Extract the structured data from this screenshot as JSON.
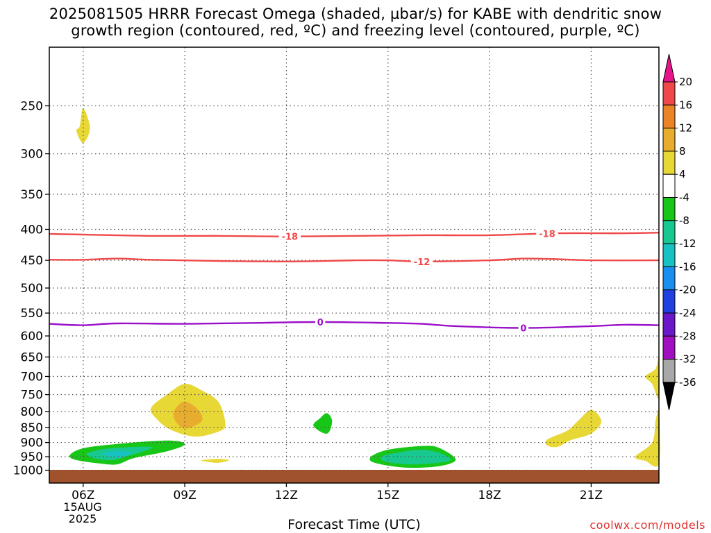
{
  "title": {
    "line1": "2025081505 HRRR Forecast Omega (shaded, µbar/s) for KABE with dendritic snow",
    "line2": "growth region (contoured, red, ºC) and freezing level (contoured, purple, ºC)"
  },
  "xlabel": "Forecast Time (UTC)",
  "credit": "coolwx.com/models",
  "date": {
    "day": "15AUG",
    "year": "2025"
  },
  "chart_data": {
    "type": "heatmap",
    "x_axis": {
      "label": "Forecast Time (UTC)",
      "range_hours": [
        5,
        23
      ],
      "ticks": [
        {
          "hour": 6,
          "label": "06Z"
        },
        {
          "hour": 9,
          "label": "09Z"
        },
        {
          "hour": 12,
          "label": "12Z"
        },
        {
          "hour": 15,
          "label": "15Z"
        },
        {
          "hour": 18,
          "label": "18Z"
        },
        {
          "hour": 21,
          "label": "21Z"
        }
      ]
    },
    "y_axis": {
      "unit": "hPa",
      "scale": "log",
      "range": [
        1050,
        200
      ],
      "ticks": [
        250,
        300,
        350,
        400,
        450,
        500,
        550,
        600,
        650,
        700,
        750,
        800,
        850,
        900,
        950,
        1000
      ]
    },
    "grid": true,
    "colorbar": {
      "labels": [
        "20",
        "16",
        "12",
        "8",
        "4",
        "-4",
        "-8",
        "-12",
        "-16",
        "-20",
        "-24",
        "-28",
        "-32",
        "-36"
      ],
      "colors": [
        "#e8158a",
        "#f04848",
        "#eb8427",
        "#e8ad2e",
        "#e8d836",
        "#ffffff",
        "#17c617",
        "#18c890",
        "#18c2c2",
        "#1a8ff0",
        "#2040e0",
        "#6a18c8",
        "#a010c0",
        "#a8a8a8",
        "#000000"
      ]
    },
    "contours": [
      {
        "value": -18,
        "label": "-18",
        "color": "#f04848",
        "points": [
          [
            5,
            407
          ],
          [
            6,
            408
          ],
          [
            8,
            410
          ],
          [
            10,
            410
          ],
          [
            12,
            411
          ],
          [
            14,
            410
          ],
          [
            16,
            409
          ],
          [
            18,
            409
          ],
          [
            20,
            406
          ],
          [
            22,
            406
          ],
          [
            23,
            405
          ]
        ],
        "label_hours": [
          12.1,
          19.7
        ]
      },
      {
        "value": -12,
        "label": "-12",
        "color": "#f04848",
        "points": [
          [
            5,
            449
          ],
          [
            6,
            449
          ],
          [
            7,
            447
          ],
          [
            8,
            449
          ],
          [
            10,
            451
          ],
          [
            12,
            452
          ],
          [
            14,
            450
          ],
          [
            15,
            450
          ],
          [
            16,
            452
          ],
          [
            18,
            450
          ],
          [
            19,
            447
          ],
          [
            20,
            448
          ],
          [
            21,
            450
          ],
          [
            23,
            450
          ]
        ],
        "label_hours": [
          16.0
        ]
      },
      {
        "value": 0,
        "label": "0",
        "color": "#9a10c8",
        "points": [
          [
            5,
            573
          ],
          [
            6,
            576
          ],
          [
            7,
            572
          ],
          [
            9,
            573
          ],
          [
            11,
            571
          ],
          [
            13,
            569
          ],
          [
            15,
            571
          ],
          [
            16,
            573
          ],
          [
            17,
            578
          ],
          [
            19,
            582
          ],
          [
            21,
            578
          ],
          [
            22,
            575
          ],
          [
            23,
            576
          ]
        ],
        "label_hours": [
          13.0,
          19.0
        ]
      }
    ],
    "regions": [
      {
        "level": "4",
        "color": "#e8d836",
        "points": [
          [
            5.9,
            270
          ],
          [
            6.0,
            252
          ],
          [
            6.2,
            272
          ],
          [
            6.0,
            288
          ],
          [
            5.8,
            275
          ]
        ]
      },
      {
        "level": "4",
        "color": "#e8d836",
        "points": [
          [
            8.0,
            790
          ],
          [
            8.5,
            748
          ],
          [
            9.0,
            720
          ],
          [
            9.5,
            738
          ],
          [
            10.0,
            772
          ],
          [
            10.2,
            840
          ],
          [
            10.0,
            863
          ],
          [
            9.3,
            880
          ],
          [
            8.6,
            858
          ],
          [
            8.2,
            826
          ]
        ]
      },
      {
        "level": "8",
        "color": "#e8ad2e",
        "points": [
          [
            8.7,
            795
          ],
          [
            9.0,
            770
          ],
          [
            9.4,
            795
          ],
          [
            9.5,
            830
          ],
          [
            9.0,
            853
          ],
          [
            8.7,
            825
          ]
        ]
      },
      {
        "level": "4",
        "color": "#e8d836",
        "points": [
          [
            9.5,
            963
          ],
          [
            10.0,
            958
          ],
          [
            10.3,
            963
          ],
          [
            10.0,
            972
          ],
          [
            9.7,
            969
          ]
        ]
      },
      {
        "level": "-4",
        "color": "#17c617",
        "points": [
          [
            5.6,
            945
          ],
          [
            6.0,
            920
          ],
          [
            7.0,
            905
          ],
          [
            8.5,
            893
          ],
          [
            9.0,
            906
          ],
          [
            8.5,
            930
          ],
          [
            7.5,
            955
          ],
          [
            7.0,
            978
          ],
          [
            6.5,
            975
          ],
          [
            5.8,
            962
          ]
        ]
      },
      {
        "level": "-8",
        "color": "#18c890",
        "points": [
          [
            6.1,
            940
          ],
          [
            6.5,
            925
          ],
          [
            7.0,
            918
          ],
          [
            8.0,
            915
          ],
          [
            7.8,
            930
          ],
          [
            7.3,
            948
          ],
          [
            6.9,
            962
          ],
          [
            6.4,
            958
          ]
        ]
      },
      {
        "level": "-12",
        "color": "#18c2c2",
        "points": [
          [
            6.6,
            938
          ],
          [
            7.0,
            930
          ],
          [
            7.4,
            935
          ],
          [
            7.2,
            950
          ],
          [
            6.8,
            952
          ]
        ]
      },
      {
        "level": "-4",
        "color": "#17c617",
        "points": [
          [
            13.0,
            820
          ],
          [
            13.2,
            805
          ],
          [
            13.35,
            830
          ],
          [
            13.2,
            870
          ],
          [
            12.8,
            845
          ]
        ]
      },
      {
        "level": "-4",
        "color": "#17c617",
        "points": [
          [
            14.5,
            950
          ],
          [
            15.0,
            925
          ],
          [
            16.0,
            912
          ],
          [
            16.5,
            918
          ],
          [
            17.0,
            960
          ],
          [
            16.5,
            985
          ],
          [
            15.5,
            990
          ],
          [
            14.6,
            972
          ]
        ]
      },
      {
        "level": "-8",
        "color": "#18c890",
        "points": [
          [
            14.8,
            950
          ],
          [
            15.3,
            935
          ],
          [
            16.0,
            925
          ],
          [
            16.6,
            940
          ],
          [
            16.8,
            965
          ],
          [
            15.8,
            978
          ],
          [
            15.0,
            970
          ]
        ]
      },
      {
        "level": "4",
        "color": "#e8d836",
        "points": [
          [
            19.7,
            890
          ],
          [
            20.3,
            860
          ],
          [
            20.6,
            830
          ],
          [
            21.0,
            795
          ],
          [
            21.3,
            830
          ],
          [
            21.0,
            870
          ],
          [
            20.4,
            892
          ],
          [
            20.0,
            915
          ],
          [
            19.7,
            910
          ]
        ]
      },
      {
        "level": "4",
        "color": "#e8d836",
        "points": [
          [
            22.6,
            700
          ],
          [
            22.9,
            680
          ],
          [
            23.0,
            650
          ],
          [
            23.0,
            760
          ],
          [
            22.8,
            720
          ]
        ]
      },
      {
        "level": "4",
        "color": "#e8d836",
        "points": [
          [
            22.3,
            950
          ],
          [
            22.8,
            900
          ],
          [
            22.9,
            830
          ],
          [
            23.0,
            800
          ],
          [
            23.0,
            975
          ],
          [
            22.6,
            965
          ]
        ]
      }
    ]
  }
}
